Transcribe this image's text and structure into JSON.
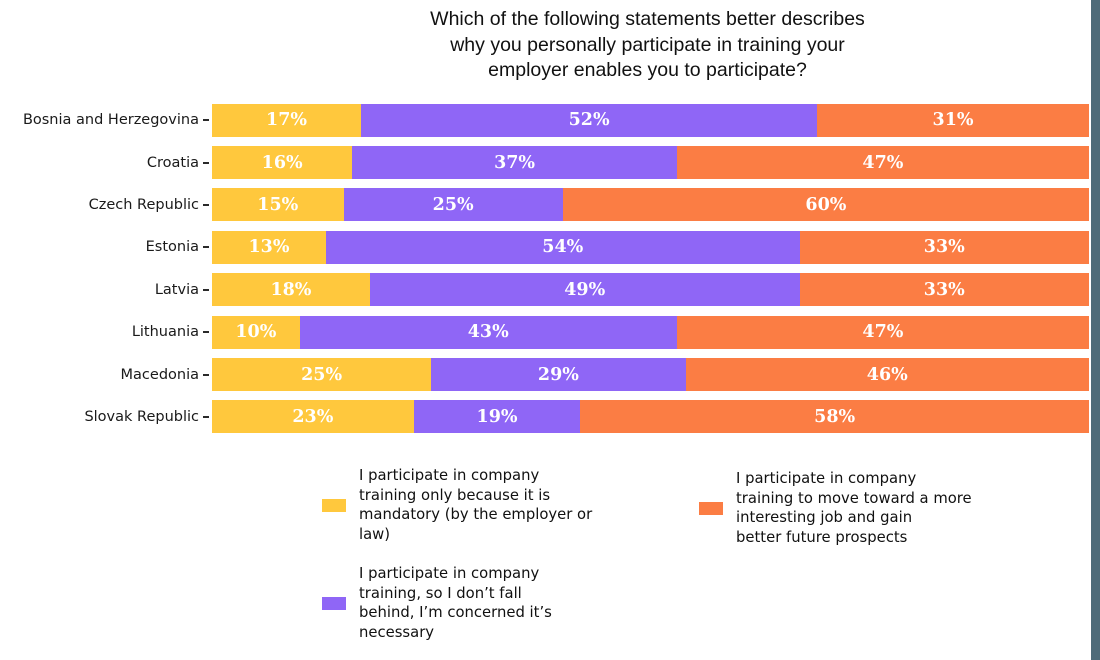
{
  "title": "Which of the following statements better describes\nwhy you personally participate in training  your\nemployer enables you to participate?",
  "colors": {
    "mandatory": "#FFC83D",
    "concerned": "#8F66F6",
    "prospects": "#FB7D44",
    "frame": "#4E6B79",
    "value_label": "#FFFFFF"
  },
  "chart_data": {
    "type": "bar",
    "orientation": "horizontal",
    "stacked": true,
    "unit": "%",
    "xlim": [
      0,
      100
    ],
    "grid": false,
    "legend_position": "bottom",
    "title": "Which of the following statements better describes why you personally participate in training  your employer enables you to participate?",
    "categories": [
      "Bosnia and Herzegovina",
      "Croatia",
      "Czech Republic",
      "Estonia",
      "Latvia",
      "Lithuania",
      "Macedonia",
      "Slovak Republic"
    ],
    "series": [
      {
        "key": "mandatory",
        "name": "I participate in company training only because it is mandatory (by the employer or law)",
        "color": "#FFC83D",
        "values": [
          17,
          16,
          15,
          13,
          18,
          10,
          25,
          23
        ]
      },
      {
        "key": "concerned",
        "name": "I participate in company training, so I don’t fall behind, I’m concerned it’s necessary",
        "color": "#8F66F6",
        "values": [
          52,
          37,
          25,
          54,
          49,
          43,
          29,
          19
        ]
      },
      {
        "key": "prospects",
        "name": "I participate in company training to move toward a more interesting job and gain better future prospects",
        "color": "#FB7D44",
        "values": [
          31,
          47,
          60,
          33,
          33,
          47,
          46,
          58
        ]
      }
    ]
  },
  "legend": {
    "items": [
      {
        "key": "mandatory",
        "color": "#FFC83D",
        "label": "I participate in company\ntraining only because it is\nmandatory (by the employer or\nlaw)"
      },
      {
        "key": "concerned",
        "color": "#8F66F6",
        "label": "I participate in company\ntraining, so I don’t fall\nbehind, I’m concerned it’s\nnecessary"
      },
      {
        "key": "prospects",
        "color": "#FB7D44",
        "label": "I participate in company\ntraining to move toward a more\ninteresting job and gain\nbetter future prospects"
      }
    ]
  }
}
